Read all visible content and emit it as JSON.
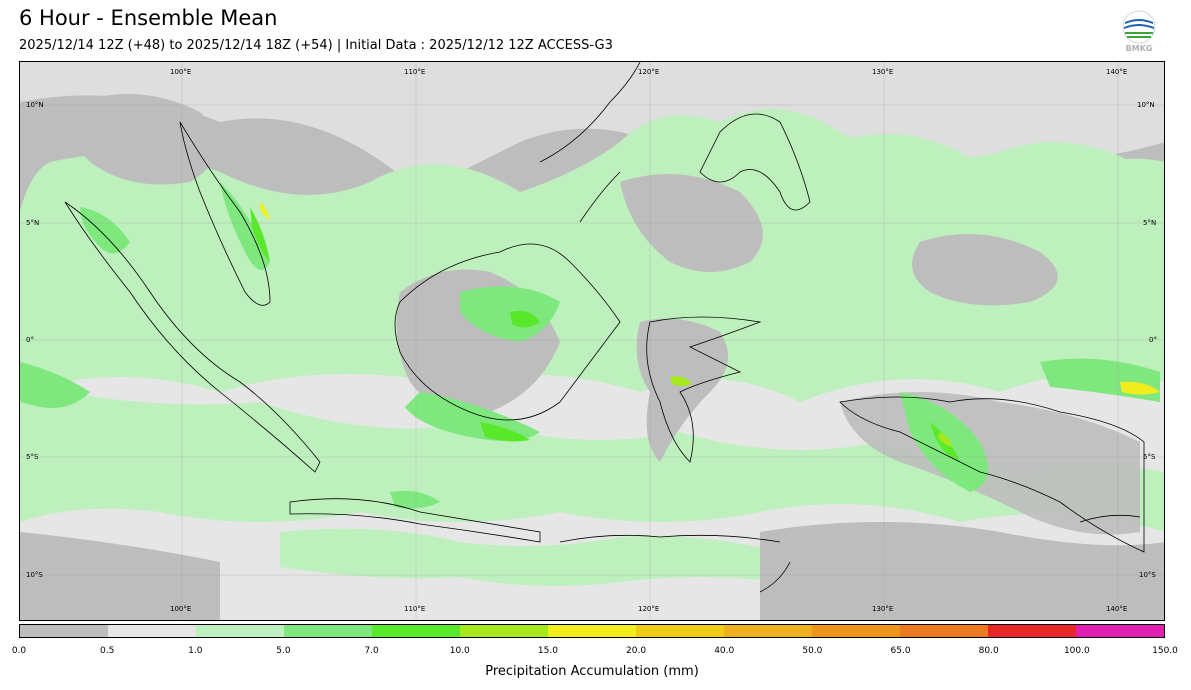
{
  "title": "6 Hour - Ensemble Mean",
  "subtitle": "2025/12/14 12Z (+48) to 2025/12/14 18Z (+54) | Initial Data : 2025/12/12 12Z ACCESS-G3",
  "logo": {
    "icon": "bmkg-logo-icon",
    "text": "BMKG"
  },
  "map": {
    "lon_labels": [
      "100°E",
      "110°E",
      "120°E",
      "130°E",
      "140°E"
    ],
    "lat_labels": [
      "10°N",
      "5°N",
      "0°",
      "5°S",
      "10°S"
    ],
    "extent": {
      "lon_min": 93.5,
      "lon_max": 142.5,
      "lat_min": -12,
      "lat_max": 11.5
    }
  },
  "colorbar": {
    "title": "Precipitation Accumulation (mm)",
    "labels": [
      "0.0",
      "0.5",
      "1.0",
      "5.0",
      "7.0",
      "10.0",
      "15.0",
      "20.0",
      "40.0",
      "50.0",
      "65.0",
      "80.0",
      "100.0",
      "150.0"
    ],
    "colors": [
      "#bdbdbd",
      "#e6e6e6",
      "#bdf0bd",
      "#7ee87e",
      "#5ae92a",
      "#a5e81c",
      "#f2ee1e",
      "#f0cc17",
      "#eeb01f",
      "#ee961c",
      "#ec7a22",
      "#e9262a",
      "#e11fb0"
    ]
  }
}
